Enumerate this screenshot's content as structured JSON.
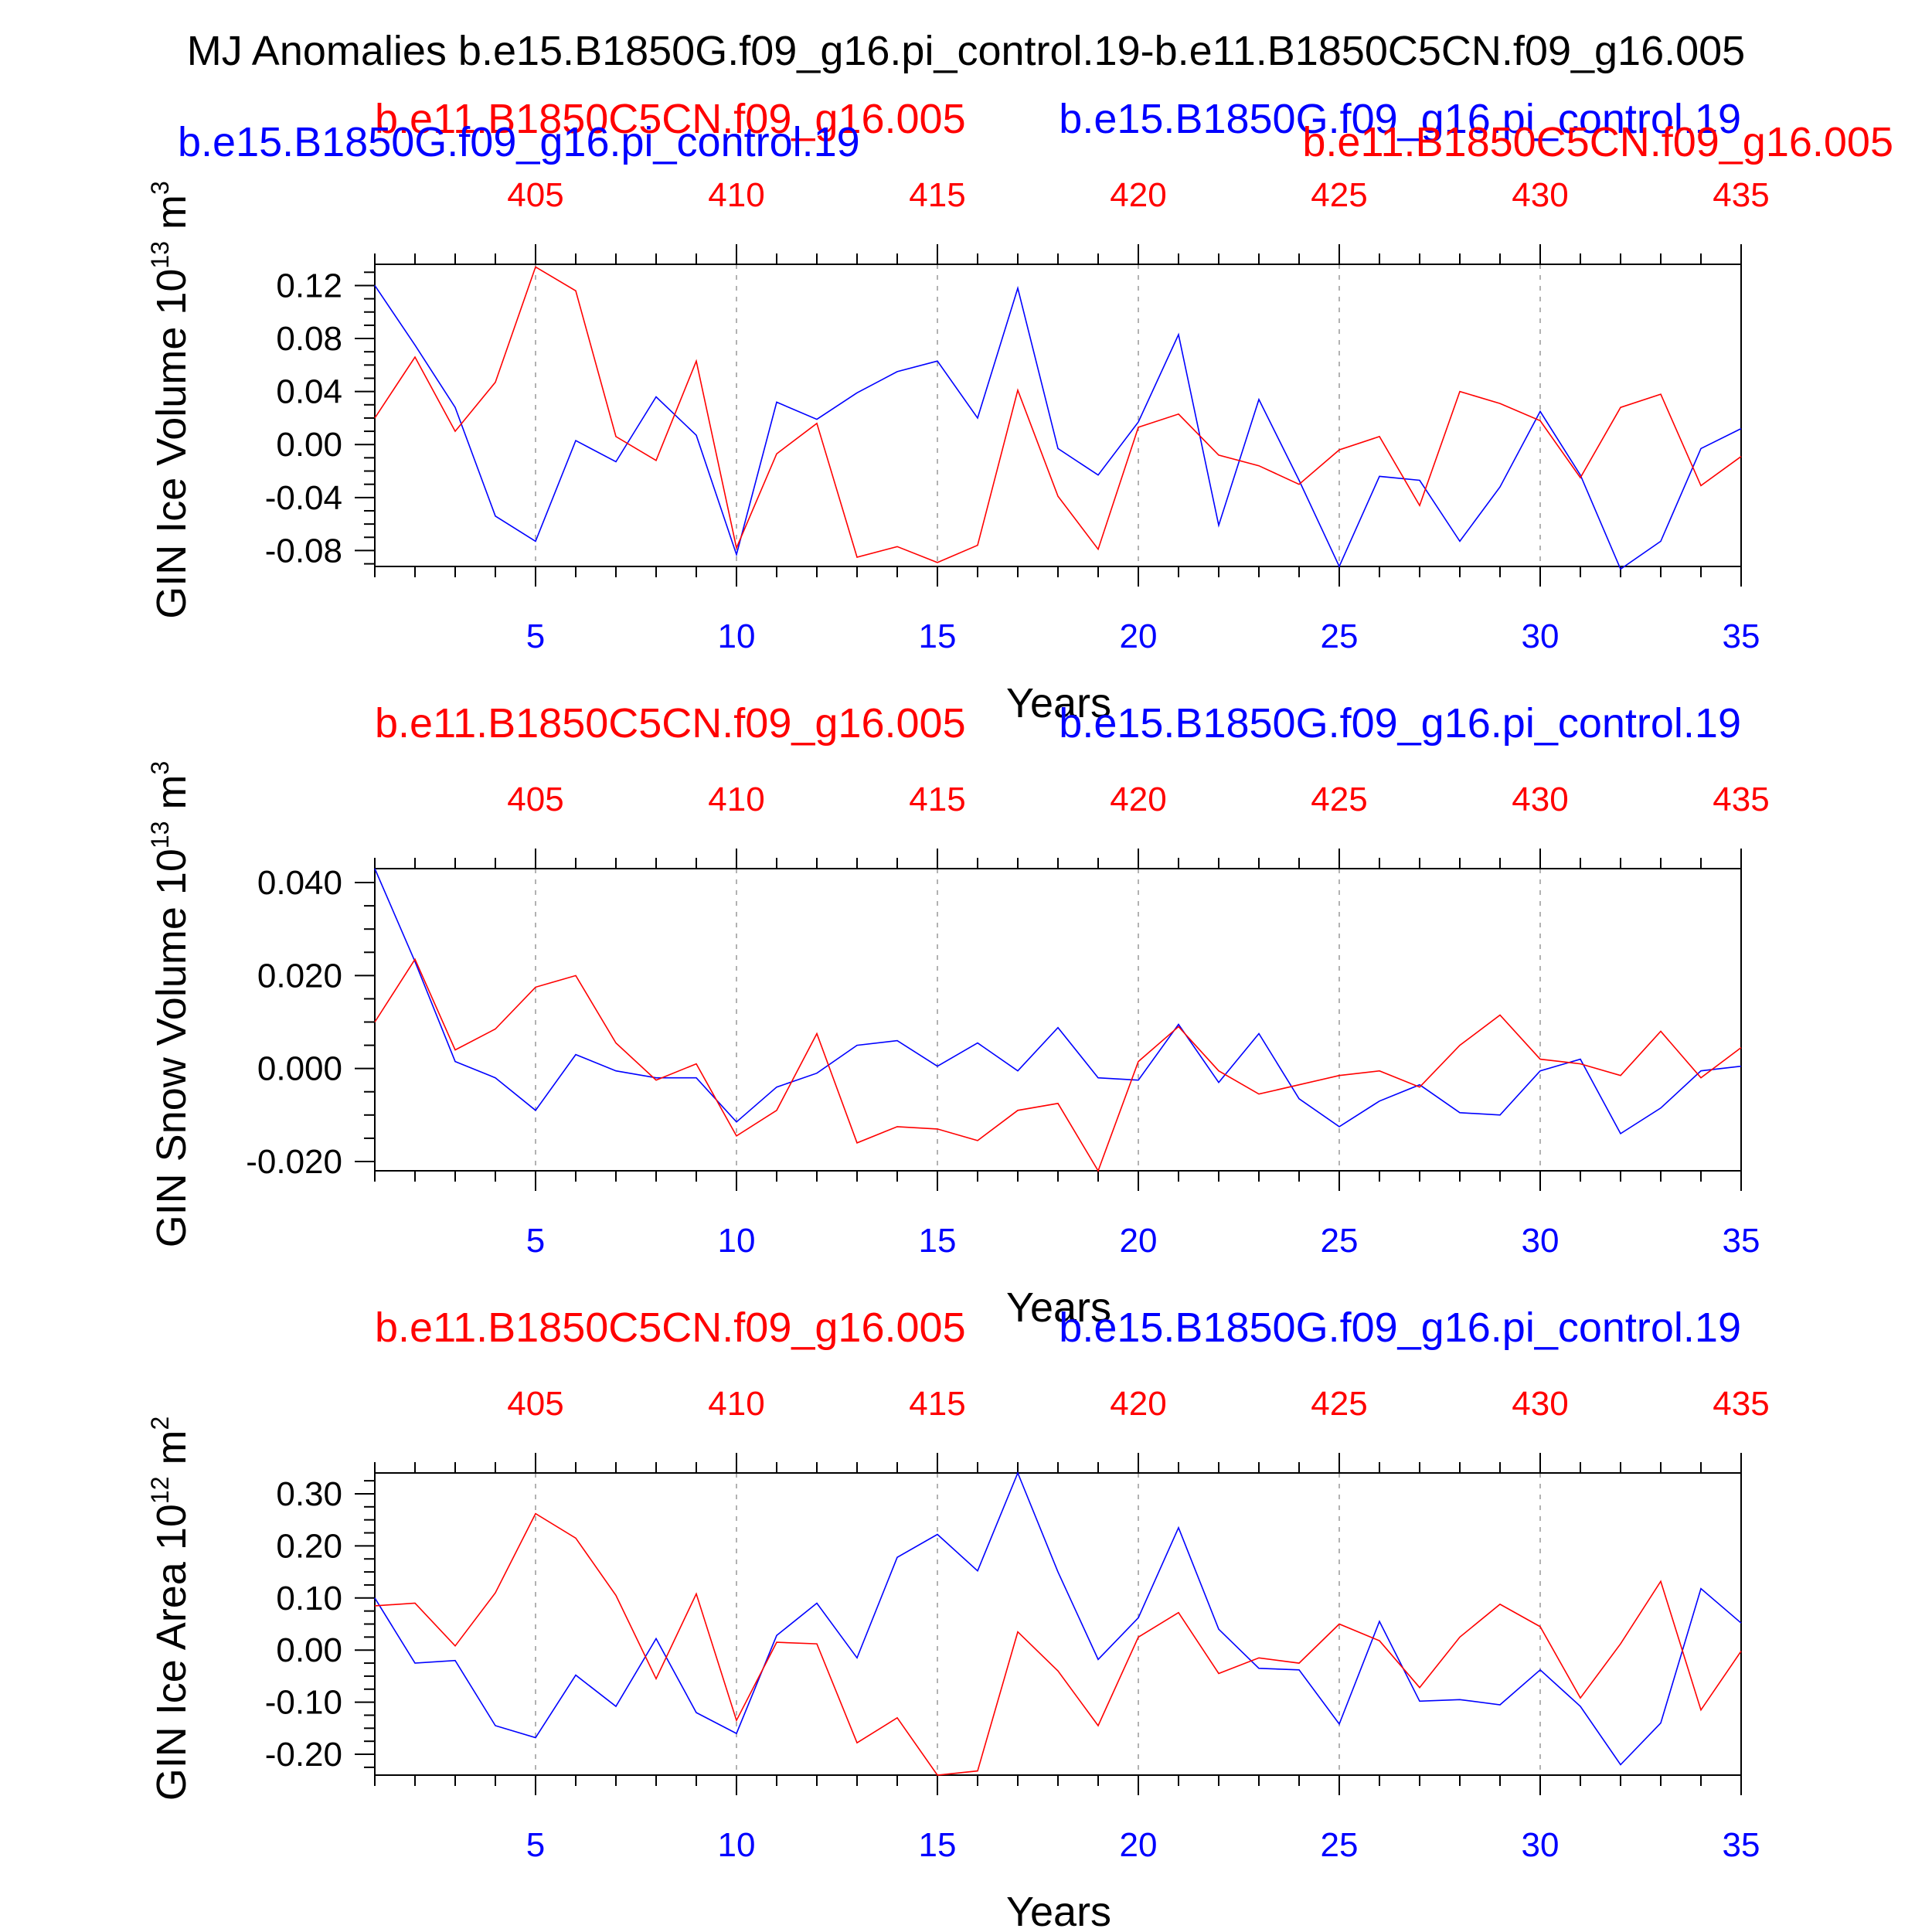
{
  "figure": {
    "title": "MJ Anomalies b.e15.B1850G.f09_g16.pi_control.19-b.e11.B1850C5CN.f09_g16.005"
  },
  "colors": {
    "series_a": "#0000ff",
    "series_b": "#ff0000",
    "axis": "#000000",
    "grid": "#999999"
  },
  "chart_data": [
    {
      "type": "line",
      "ylabel": "GIN Ice Volume 10",
      "ylabel_exp": "13",
      "ylabel_unit": " m",
      "ylabel_unit_exp": "3",
      "xlabel": "Years",
      "ylim": [
        -0.092,
        0.136
      ],
      "yticks": [
        -0.08,
        -0.04,
        0.0,
        0.04,
        0.08,
        0.12
      ],
      "ytick_labels": [
        "-0.08",
        "-0.04",
        "0.00",
        "0.04",
        "0.08",
        "0.12"
      ],
      "x_range": [
        1,
        35
      ],
      "xticks": [
        5,
        10,
        15,
        20,
        25,
        30,
        35
      ],
      "xtick_labels": [
        "5",
        "10",
        "15",
        "20",
        "25",
        "30",
        "35"
      ],
      "top_xtick_labels": [
        "405",
        "410",
        "415",
        "420",
        "425",
        "430",
        "435"
      ],
      "legend_labels": [
        {
          "text": "b.e11.B1850C5CN.f09_g16.005",
          "color": "#ff0000",
          "pos": "top-left-upper"
        },
        {
          "text": "b.e15.B1850G.f09_g16.pi_control.19",
          "color": "#0000ff",
          "pos": "top-left-lower"
        },
        {
          "text": "b.e15.B1850G.f09_g16.pi_control.19",
          "color": "#0000ff",
          "pos": "top-right-upper"
        },
        {
          "text": "b.e11.B1850C5CN.f09_g16.005",
          "color": "#ff0000",
          "pos": "top-right-lower"
        }
      ],
      "series": [
        {
          "color": "#0000ff",
          "x": [
            1,
            2,
            3,
            4,
            5,
            6,
            7,
            8,
            9,
            10,
            11,
            12,
            13,
            14,
            15,
            16,
            17,
            18,
            19,
            20,
            21,
            22,
            23,
            24,
            25,
            26,
            27,
            28,
            29,
            30,
            31,
            32,
            33,
            34,
            35
          ],
          "values": [
            0.12,
            0.075,
            0.028,
            -0.054,
            -0.073,
            0.003,
            -0.013,
            0.036,
            0.007,
            -0.083,
            0.032,
            0.019,
            0.039,
            0.055,
            0.063,
            0.02,
            0.118,
            -0.003,
            -0.023,
            0.017,
            0.083,
            -0.061,
            0.034,
            -0.027,
            -0.092,
            -0.024,
            -0.027,
            -0.073,
            -0.032,
            0.025,
            -0.023,
            -0.094,
            -0.073,
            -0.003,
            0.012
          ]
        },
        {
          "color": "#ff0000",
          "x": [
            1,
            2,
            3,
            4,
            5,
            6,
            7,
            8,
            9,
            10,
            11,
            12,
            13,
            14,
            15,
            16,
            17,
            18,
            19,
            20,
            21,
            22,
            23,
            24,
            25,
            26,
            27,
            28,
            29,
            30,
            31,
            32,
            33,
            34,
            35
          ],
          "values": [
            0.02,
            0.066,
            0.01,
            0.047,
            0.134,
            0.116,
            0.006,
            -0.012,
            0.063,
            -0.078,
            -0.007,
            0.016,
            -0.085,
            -0.077,
            -0.089,
            -0.076,
            0.041,
            -0.039,
            -0.079,
            0.013,
            0.023,
            -0.008,
            -0.016,
            -0.03,
            -0.004,
            0.006,
            -0.046,
            0.04,
            0.031,
            0.018,
            -0.025,
            0.028,
            0.038,
            -0.031,
            -0.009
          ]
        }
      ]
    },
    {
      "type": "line",
      "ylabel": "GIN Snow Volume 10",
      "ylabel_exp": "13",
      "ylabel_unit": " m",
      "ylabel_unit_exp": "3",
      "xlabel": "Years",
      "ylim": [
        -0.022,
        0.043
      ],
      "yticks": [
        -0.02,
        0.0,
        0.02,
        0.04
      ],
      "ytick_labels": [
        "-0.020",
        "0.000",
        "0.020",
        "0.040"
      ],
      "x_range": [
        1,
        35
      ],
      "xticks": [
        5,
        10,
        15,
        20,
        25,
        30,
        35
      ],
      "xtick_labels": [
        "5",
        "10",
        "15",
        "20",
        "25",
        "30",
        "35"
      ],
      "top_xtick_labels": [
        "405",
        "410",
        "415",
        "420",
        "425",
        "430",
        "435"
      ],
      "legend_labels": [
        {
          "text": "b.e11.B1850C5CN.f09_g16.005",
          "color": "#ff0000",
          "pos": "top-left"
        },
        {
          "text": "b.e15.B1850G.f09_g16.pi_control.19",
          "color": "#0000ff",
          "pos": "top-right"
        }
      ],
      "series": [
        {
          "color": "#0000ff",
          "x": [
            1,
            2,
            3,
            4,
            5,
            6,
            7,
            8,
            9,
            10,
            11,
            12,
            13,
            14,
            15,
            16,
            17,
            18,
            19,
            20,
            21,
            22,
            23,
            24,
            25,
            26,
            27,
            28,
            29,
            30,
            31,
            32,
            33,
            34,
            35
          ],
          "values": [
            0.043,
            0.023,
            0.0015,
            -0.002,
            -0.009,
            0.003,
            -0.0005,
            -0.002,
            -0.002,
            -0.0115,
            -0.004,
            -0.001,
            0.005,
            0.006,
            0.0005,
            0.0055,
            -0.0005,
            0.0088,
            -0.002,
            -0.0025,
            0.0095,
            -0.003,
            0.0075,
            -0.0065,
            -0.0125,
            -0.007,
            -0.0035,
            -0.0095,
            -0.01,
            -0.0005,
            0.002,
            -0.014,
            -0.0085,
            -0.0005,
            0.0005
          ]
        },
        {
          "color": "#ff0000",
          "x": [
            1,
            2,
            3,
            4,
            5,
            6,
            7,
            8,
            9,
            10,
            11,
            12,
            13,
            14,
            15,
            16,
            17,
            18,
            19,
            20,
            21,
            22,
            23,
            24,
            25,
            26,
            27,
            28,
            29,
            30,
            31,
            32,
            33,
            34,
            35
          ],
          "values": [
            0.01,
            0.0235,
            0.004,
            0.0085,
            0.0175,
            0.02,
            0.0055,
            -0.0025,
            0.001,
            -0.0145,
            -0.009,
            0.0075,
            -0.016,
            -0.0125,
            -0.013,
            -0.0155,
            -0.009,
            -0.0075,
            -0.022,
            0.0015,
            0.009,
            -0.0005,
            -0.0055,
            -0.0035,
            -0.0015,
            -0.0005,
            -0.004,
            0.005,
            0.0115,
            0.002,
            0.001,
            -0.0015,
            0.008,
            -0.002,
            0.0045
          ]
        }
      ]
    },
    {
      "type": "line",
      "ylabel": "GIN Ice Area 10",
      "ylabel_exp": "12",
      "ylabel_unit": " m",
      "ylabel_unit_exp": "2",
      "xlabel": "Years",
      "ylim": [
        -0.24,
        0.34
      ],
      "yticks": [
        -0.2,
        -0.1,
        0.0,
        0.1,
        0.2,
        0.3
      ],
      "ytick_labels": [
        "-0.20",
        "-0.10",
        "0.00",
        "0.10",
        "0.20",
        "0.30"
      ],
      "x_range": [
        1,
        35
      ],
      "xticks": [
        5,
        10,
        15,
        20,
        25,
        30,
        35
      ],
      "xtick_labels": [
        "5",
        "10",
        "15",
        "20",
        "25",
        "30",
        "35"
      ],
      "top_xtick_labels": [
        "405",
        "410",
        "415",
        "420",
        "425",
        "430",
        "435"
      ],
      "legend_labels": [
        {
          "text": "b.e11.B1850C5CN.f09_g16.005",
          "color": "#ff0000",
          "pos": "top-left"
        },
        {
          "text": "b.e15.B1850G.f09_g16.pi_control.19",
          "color": "#0000ff",
          "pos": "top-right"
        }
      ],
      "series": [
        {
          "color": "#0000ff",
          "x": [
            1,
            2,
            3,
            4,
            5,
            6,
            7,
            8,
            9,
            10,
            11,
            12,
            13,
            14,
            15,
            16,
            17,
            18,
            19,
            20,
            21,
            22,
            23,
            24,
            25,
            26,
            27,
            28,
            29,
            30,
            31,
            32,
            33,
            34,
            35
          ],
          "values": [
            0.1,
            -0.025,
            -0.02,
            -0.145,
            -0.168,
            -0.048,
            -0.108,
            0.022,
            -0.12,
            -0.16,
            0.028,
            0.09,
            -0.015,
            0.178,
            0.222,
            0.152,
            0.34,
            0.15,
            -0.018,
            0.062,
            0.235,
            0.04,
            -0.035,
            -0.038,
            -0.142,
            0.055,
            -0.098,
            -0.095,
            -0.105,
            -0.038,
            -0.108,
            -0.22,
            -0.14,
            0.118,
            0.052
          ]
        },
        {
          "color": "#ff0000",
          "x": [
            1,
            2,
            3,
            4,
            5,
            6,
            7,
            8,
            9,
            10,
            11,
            12,
            13,
            14,
            15,
            16,
            17,
            18,
            19,
            20,
            21,
            22,
            23,
            24,
            25,
            26,
            27,
            28,
            29,
            30,
            31,
            32,
            33,
            34,
            35
          ],
          "values": [
            0.085,
            0.09,
            0.008,
            0.11,
            0.262,
            0.215,
            0.105,
            -0.055,
            0.108,
            -0.135,
            0.015,
            0.012,
            -0.178,
            -0.13,
            -0.24,
            -0.232,
            0.035,
            -0.04,
            -0.145,
            0.025,
            0.072,
            -0.045,
            -0.015,
            -0.025,
            0.05,
            0.018,
            -0.072,
            0.025,
            0.088,
            0.045,
            -0.092,
            0.012,
            0.132,
            -0.115,
            -0.002
          ]
        }
      ]
    }
  ]
}
